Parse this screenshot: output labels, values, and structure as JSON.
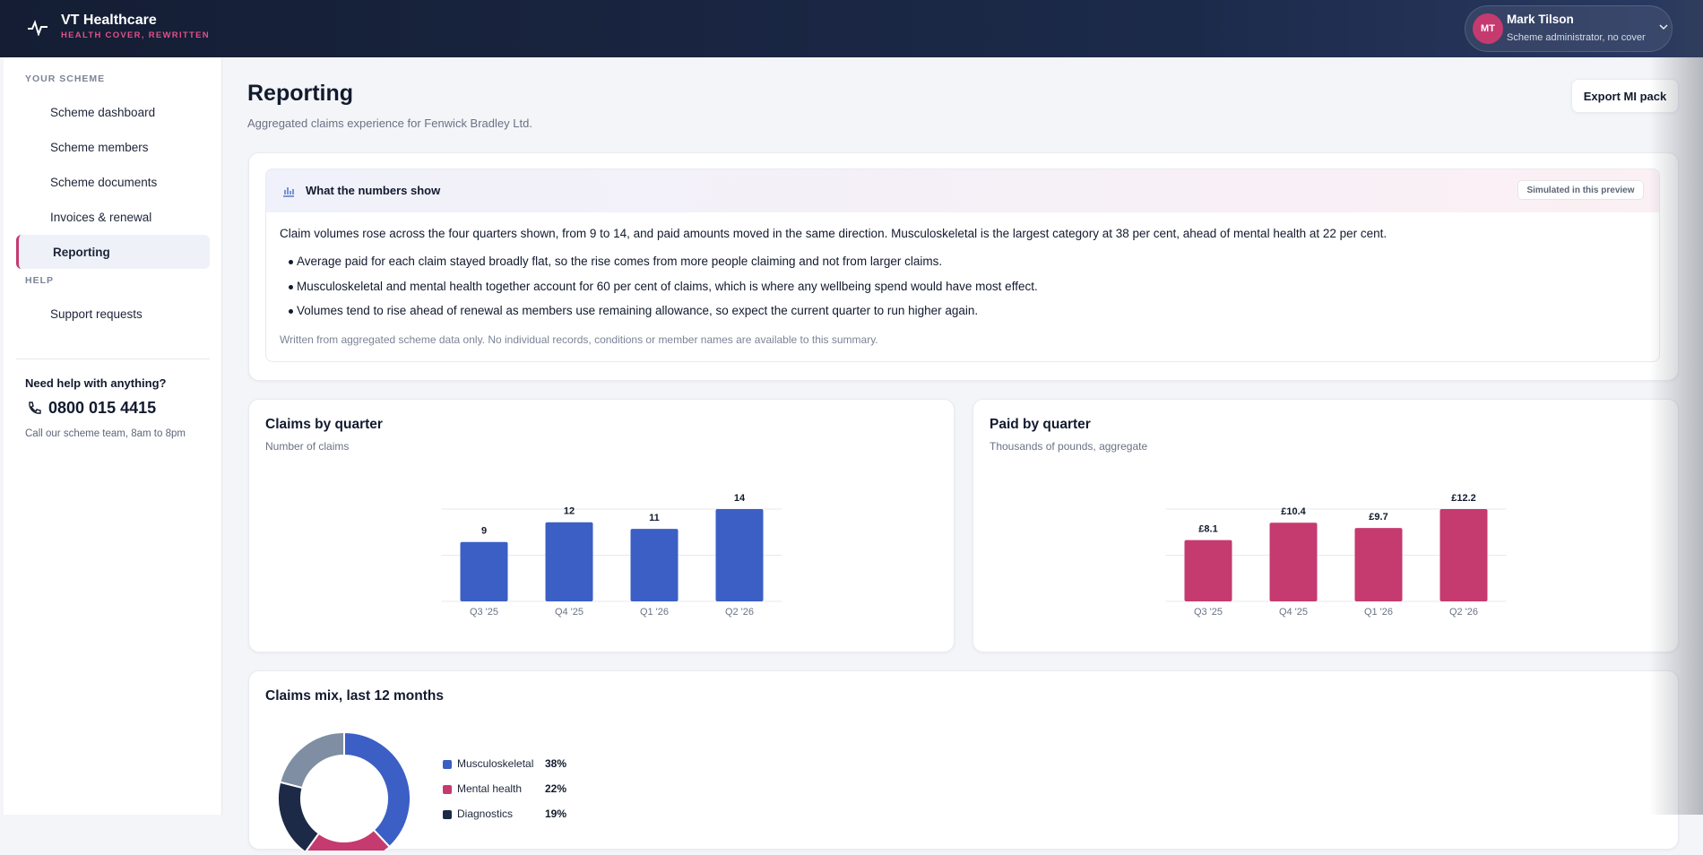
{
  "header": {
    "brand": "VT Healthcare",
    "tagline": "HEALTH COVER, REWRITTEN",
    "user": {
      "initials": "MT",
      "name": "Mark Tilson",
      "role": "Scheme administrator, no cover"
    }
  },
  "sidebar": {
    "sections": [
      {
        "heading": "YOUR SCHEME",
        "items": [
          "Scheme dashboard",
          "Scheme members",
          "Scheme documents",
          "Invoices & renewal",
          "Reporting"
        ]
      },
      {
        "heading": "HELP",
        "items": [
          "Support requests"
        ]
      }
    ],
    "help": {
      "title": "Need help with anything?",
      "phone": "0800 015 4415",
      "hours": "Call our scheme team, 8am to 8pm"
    }
  },
  "page": {
    "title": "Reporting",
    "subtitle": "Aggregated claims experience for Fenwick Bradley Ltd.",
    "export": "Export MI pack"
  },
  "summary": {
    "title": "What the numbers show",
    "badge": "Simulated in this preview",
    "intro": "Claim volumes rose across the four quarters shown, from 9 to 14, and paid amounts moved in the same direction. Musculoskeletal is the largest category at 38 per cent, ahead of mental health at 22 per cent.",
    "bullets": [
      "Average paid for each claim stayed broadly flat, so the rise comes from more people claiming and not from larger claims.",
      "Musculoskeletal and mental health together account for 60 per cent of claims, which is where any wellbeing spend would have most effect.",
      "Volumes tend to rise ahead of renewal as members use remaining allowance, so expect the current quarter to run higher again."
    ],
    "footnote": "Written from aggregated scheme data only. No individual records, conditions or member names are available to this summary."
  },
  "chart_data": [
    {
      "type": "bar",
      "title": "Claims by quarter",
      "subtitle": "Number of claims",
      "categories": [
        "Q3 '25",
        "Q4 '25",
        "Q1 '26",
        "Q2 '26"
      ],
      "values": [
        9,
        12,
        11,
        14
      ],
      "color": "#3b5fc4",
      "ylim": [
        0,
        14
      ],
      "yticks": [
        0,
        7,
        14
      ],
      "grid": true
    },
    {
      "type": "bar",
      "title": "Paid by quarter",
      "subtitle": "Thousands of pounds, aggregate",
      "categories": [
        "Q3 '25",
        "Q4 '25",
        "Q1 '26",
        "Q2 '26"
      ],
      "values": [
        8.1,
        10.4,
        9.7,
        12.2
      ],
      "value_labels": [
        "£8.1",
        "£10.4",
        "£9.7",
        "£12.2"
      ],
      "color": "#c53a6f",
      "ylim": [
        0,
        12.2
      ],
      "yticks": [
        0,
        6.1,
        12.2
      ],
      "grid": true
    },
    {
      "type": "pie",
      "title": "Claims mix, last 12 months",
      "categories": [
        "Musculoskeletal",
        "Mental health",
        "Diagnostics",
        null
      ],
      "values": [
        38,
        22,
        19,
        21
      ],
      "value_labels": [
        "38%",
        "22%",
        "19%",
        null
      ],
      "colors": [
        "#3b5fc4",
        "#c53a6f",
        "#1c2a48",
        "#7f8ea3"
      ],
      "donut": true
    }
  ]
}
